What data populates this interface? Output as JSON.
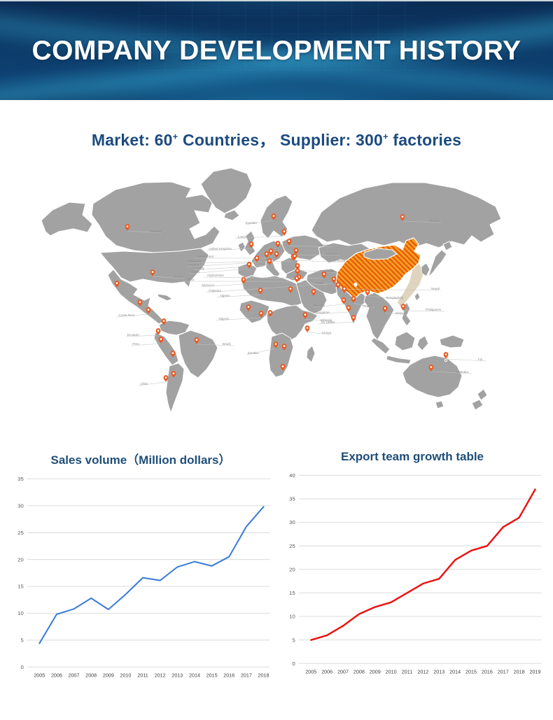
{
  "banner": {
    "title": "COMPANY DEVELOPMENT HISTORY",
    "bg_dark": "#0a2c55",
    "bg_mid": "#0d4273",
    "accent": "#2aa9dd",
    "text_color": "#ffffff"
  },
  "subtitle": {
    "part1": "Market: 60",
    "sup1": "+",
    "part2": " Countries，  Supplier: 300",
    "sup2": "+",
    "part3": " factories",
    "color": "#1c4a80"
  },
  "map": {
    "land_color": "#a2a2a2",
    "border_color": "#ffffff",
    "highlight_country": "China",
    "highlight_fill": "#f7a41f",
    "highlight_hatch": "#e8590f",
    "pin_color": "#ea5b20",
    "label_color": "#8f8f8f",
    "labeled_pins": [
      {
        "label": "Canada",
        "pin": [
          167,
          97
        ],
        "text": [
          199,
          99
        ],
        "side": "right"
      },
      {
        "label": "U.S.A",
        "pin": [
          203,
          162
        ],
        "text": [
          234,
          164
        ],
        "side": "right"
      },
      {
        "label": "Costa Rica",
        "pin": [
          197,
          216
        ],
        "text": [
          177,
          219
        ],
        "side": "left"
      },
      {
        "label": "Ecuador",
        "pin": [
          211,
          246
        ],
        "text": [
          184,
          247
        ],
        "side": "left"
      },
      {
        "label": "Peru",
        "pin": [
          215,
          258
        ],
        "text": [
          184,
          260
        ],
        "side": "left"
      },
      {
        "label": "Brazil",
        "pin": [
          266,
          259
        ],
        "text": [
          303,
          260
        ],
        "side": "right"
      },
      {
        "label": "Chile",
        "pin": [
          222,
          313
        ],
        "text": [
          196,
          317
        ],
        "side": "left"
      },
      {
        "label": "Sweden",
        "pin": [
          376,
          82
        ],
        "text": [
          352,
          87
        ],
        "side": "left"
      },
      {
        "label": "Latvia",
        "pin": [
          391,
          104
        ],
        "text": [
          337,
          107
        ],
        "side": "left"
      },
      {
        "label": "United Kingdom",
        "pin": [
          344,
          122
        ],
        "text": [
          316,
          124
        ],
        "side": "left"
      },
      {
        "label": "Switzerland",
        "pin": [
          366,
          136
        ],
        "text": [
          290,
          135
        ],
        "side": "left"
      },
      {
        "label": "Romania",
        "pin": [
          404,
          140
        ],
        "text": [
          272,
          142
        ],
        "side": "left"
      },
      {
        "label": "France",
        "pin": [
          352,
          142
        ],
        "text": [
          269,
          147
        ],
        "side": "left"
      },
      {
        "label": "Italy",
        "pin": [
          370,
          146
        ],
        "text": [
          277,
          152
        ],
        "side": "left"
      },
      {
        "label": "Spain",
        "pin": [
          341,
          151
        ],
        "text": [
          270,
          157
        ],
        "side": "left"
      },
      {
        "label": "Afghanistan",
        "pin": [
          448,
          165
        ],
        "text": [
          305,
          162
        ],
        "side": "left"
      },
      {
        "label": "Syria",
        "pin": [
          412,
          169
        ],
        "text": [
          262,
          168
        ],
        "side": "left"
      },
      {
        "label": "Morocco",
        "pin": [
          333,
          173
        ],
        "text": [
          291,
          176
        ],
        "side": "left"
      },
      {
        "label": "Pakistan",
        "pin": [
          462,
          172
        ],
        "text": [
          301,
          184
        ],
        "side": "left"
      },
      {
        "label": "Algeria",
        "pin": [
          357,
          188
        ],
        "text": [
          313,
          191
        ],
        "side": "left"
      },
      {
        "label": "Nigeria",
        "pin": [
          358,
          221
        ],
        "text": [
          312,
          224
        ],
        "side": "left"
      },
      {
        "label": "Zambia",
        "pin": [
          379,
          265
        ],
        "text": [
          354,
          273
        ],
        "side": "left"
      },
      {
        "label": "Russia",
        "pin": [
          560,
          83
        ],
        "text": [
          599,
          84
        ],
        "side": "right"
      },
      {
        "label": "Belarus",
        "pin": [
          398,
          118
        ],
        "text": [
          441,
          119
        ],
        "side": "right"
      },
      {
        "label": "Ukraine",
        "pin": [
          408,
          131
        ],
        "text": [
          451,
          131
        ],
        "side": "right"
      },
      {
        "label": "Armenia",
        "pin": [
          406,
          139
        ],
        "text": [
          461,
          141
        ],
        "side": "right"
      },
      {
        "label": "Azerbaijan",
        "pin": [
          410,
          153
        ],
        "text": [
          442,
          156
        ],
        "side": "right"
      },
      {
        "label": "Israel",
        "pin": [
          409,
          171
        ],
        "text": [
          436,
          173
        ],
        "side": "right"
      },
      {
        "label": "Nepal",
        "pin": [
          468,
          180
        ],
        "text": [
          601,
          181
        ],
        "side": "right"
      },
      {
        "label": "Bangladesh",
        "pin": [
          510,
          190
        ],
        "text": [
          537,
          194
        ],
        "side": "right"
      },
      {
        "label": "Mumbai",
        "pin": [
          476,
          202
        ],
        "text": [
          449,
          205
        ],
        "side": "left"
      },
      {
        "label": "Tirupur",
        "pin": [
          490,
          200
        ],
        "text": [
          502,
          206
        ],
        "side": "right"
      },
      {
        "label": "Bangalore",
        "pin": [
          483,
          213
        ],
        "text": [
          456,
          215
        ],
        "side": "left"
      },
      {
        "label": "Sri Lanka",
        "pin": [
          490,
          227
        ],
        "text": [
          463,
          229
        ],
        "side": "left"
      },
      {
        "label": "Ethiopia",
        "pin": [
          421,
          223
        ],
        "text": [
          443,
          226
        ],
        "side": "right"
      },
      {
        "label": "Kenya",
        "pin": [
          424,
          242
        ],
        "text": [
          445,
          244
        ],
        "side": "right"
      },
      {
        "label": "Vietnam",
        "pin": [
          535,
          214
        ],
        "text": [
          549,
          216
        ],
        "side": "right"
      },
      {
        "label": "Philippines",
        "pin": [
          561,
          211
        ],
        "text": [
          593,
          211
        ],
        "side": "right"
      },
      {
        "label": "Fiji",
        "pin": [
          622,
          280
        ],
        "text": [
          668,
          282
        ],
        "side": "right"
      },
      {
        "label": "Australia",
        "pin": [
          601,
          298
        ],
        "text": [
          636,
          300
        ],
        "side": "right"
      }
    ],
    "extra_pins": [
      [
        152,
        178
      ],
      [
        185,
        205
      ],
      [
        219,
        232
      ],
      [
        232,
        278
      ],
      [
        233,
        307
      ],
      [
        340,
        212
      ],
      [
        371,
        220
      ],
      [
        391,
        268
      ],
      [
        389,
        297
      ],
      [
        382,
        121
      ],
      [
        372,
        132
      ],
      [
        380,
        136
      ],
      [
        410,
        160
      ],
      [
        400,
        186
      ],
      [
        433,
        190
      ],
      [
        477,
        186
      ]
    ],
    "china_marker": [
      493,
      178
    ]
  },
  "chart_data": [
    {
      "type": "line",
      "title": "Sales volume（Million dollars）",
      "title_color": "#1f4e79",
      "line_color": "#3b7dd8",
      "line_width": 2,
      "x": [
        "2005",
        "2006",
        "2007",
        "2008",
        "2009",
        "2010",
        "2011",
        "2012",
        "2013",
        "2014",
        "2015",
        "2016",
        "2017",
        "2018"
      ],
      "values": [
        4.4,
        9.8,
        10.8,
        12.8,
        10.7,
        13.5,
        16.6,
        16.1,
        18.6,
        19.6,
        18.8,
        20.5,
        26.1,
        29.8
      ],
      "xlabel": "",
      "ylabel": "",
      "ylim": [
        0,
        35
      ],
      "ytick": 5,
      "grid": true,
      "legend": false
    },
    {
      "type": "line",
      "title": "Export team growth table",
      "title_color": "#1f4e79",
      "line_color": "#ee1111",
      "line_width": 2.4,
      "x": [
        "2005",
        "2006",
        "2007",
        "2008",
        "2009",
        "2010",
        "2011",
        "2012",
        "2013",
        "2014",
        "2015",
        "2016",
        "2017",
        "2018",
        "2019"
      ],
      "values": [
        5,
        6,
        8,
        10.5,
        12,
        13,
        15,
        17,
        18,
        22,
        24,
        25,
        29,
        31,
        37
      ],
      "xlabel": "",
      "ylabel": "",
      "ylim": [
        0,
        40
      ],
      "ytick": 5,
      "grid": true,
      "legend": false
    }
  ]
}
